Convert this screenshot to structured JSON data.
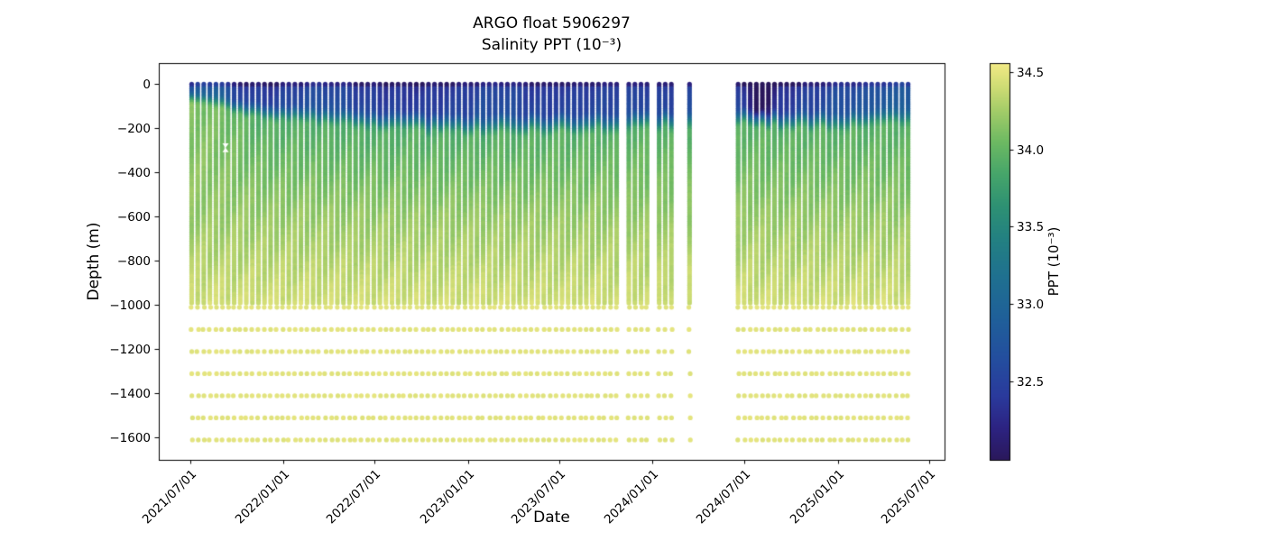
{
  "chart_data": {
    "type": "scatter",
    "title": "ARGO float 5906297",
    "subtitle": "Salinity PPT (10⁻³)",
    "xlabel": "Date",
    "ylabel": "Depth (m)",
    "x_ticks": [
      "2021/07/01",
      "2022/01/01",
      "2022/07/01",
      "2023/01/01",
      "2023/07/01",
      "2024/01/01",
      "2024/07/01",
      "2025/01/01",
      "2025/07/01"
    ],
    "x_domain": [
      "2021-04-30",
      "2025-07-31"
    ],
    "y_ticks": [
      0,
      -200,
      -400,
      -600,
      -800,
      -1000,
      -1200,
      -1400,
      -1600
    ],
    "y_domain": [
      -1700,
      95
    ],
    "grid": false,
    "legend": "none",
    "colorbar": {
      "label": "PPT (10⁻³)",
      "ticks": [
        34.5,
        34.0,
        33.5,
        33.0,
        32.5
      ],
      "vmin": 31.99,
      "vmax": 34.56,
      "colormap_stops": [
        [
          0.0,
          "#2a185c"
        ],
        [
          0.08,
          "#2c2382"
        ],
        [
          0.16,
          "#2a3a9c"
        ],
        [
          0.26,
          "#234f9e"
        ],
        [
          0.36,
          "#1f6099"
        ],
        [
          0.46,
          "#1f7090"
        ],
        [
          0.56,
          "#238181"
        ],
        [
          0.64,
          "#2e9173"
        ],
        [
          0.72,
          "#46a56a"
        ],
        [
          0.8,
          "#6cb962"
        ],
        [
          0.88,
          "#a3cc68"
        ],
        [
          0.94,
          "#cedc74"
        ],
        [
          1.0,
          "#f2e985"
        ]
      ]
    },
    "profiles": {
      "start": "2021-07-04",
      "end": "2025-05-21",
      "interval_days": 12,
      "gaps": [
        [
          "2023-11-01",
          "2023-11-13"
        ],
        [
          "2023-12-23",
          "2024-01-02"
        ],
        [
          "2024-02-19",
          "2024-03-06"
        ],
        [
          "2024-03-16",
          "2024-06-06"
        ]
      ]
    },
    "depth_sampling": {
      "dense_top": 0,
      "dense_bottom": -990,
      "dense_step": 10,
      "deep_levels": [
        -1010,
        -1110,
        -1210,
        -1310,
        -1410,
        -1510,
        -1610
      ]
    },
    "salinity_field": {
      "surface_series": [
        [
          "2021-07-04",
          32.62
        ],
        [
          "2021-08-20",
          32.85
        ],
        [
          "2021-10-01",
          32.4
        ],
        [
          "2021-12-15",
          32.32
        ],
        [
          "2022-03-01",
          32.55
        ],
        [
          "2022-06-01",
          32.42
        ],
        [
          "2022-09-01",
          32.3
        ],
        [
          "2022-12-01",
          32.36
        ],
        [
          "2023-03-01",
          32.52
        ],
        [
          "2023-06-01",
          32.36
        ],
        [
          "2023-09-01",
          32.42
        ],
        [
          "2023-12-15",
          32.46
        ],
        [
          "2024-02-01",
          32.4
        ],
        [
          "2024-06-12",
          32.55
        ],
        [
          "2024-07-28",
          31.72
        ],
        [
          "2024-08-18",
          31.9
        ],
        [
          "2024-09-12",
          32.3
        ],
        [
          "2024-12-01",
          32.48
        ],
        [
          "2025-03-01",
          32.6
        ],
        [
          "2025-05-21",
          32.78
        ]
      ],
      "mixed_layer_series": [
        [
          "2021-07-04",
          32
        ],
        [
          "2021-09-01",
          48
        ],
        [
          "2021-11-01",
          78
        ],
        [
          "2022-03-01",
          100
        ],
        [
          "2022-07-01",
          115
        ],
        [
          "2022-11-01",
          125
        ],
        [
          "2023-06-01",
          130
        ],
        [
          "2023-12-01",
          118
        ],
        [
          "2024-07-01",
          95
        ],
        [
          "2024-10-01",
          118
        ],
        [
          "2025-02-01",
          112
        ],
        [
          "2025-05-21",
          100
        ]
      ],
      "upper_mid_series": [
        [
          "2021-07-04",
          34.12
        ],
        [
          "2021-09-15",
          34.03
        ],
        [
          "2021-11-15",
          33.92
        ],
        [
          "2022-06-01",
          33.9
        ],
        [
          "2023-06-01",
          33.93
        ],
        [
          "2024-06-01",
          33.95
        ],
        [
          "2025-05-21",
          33.93
        ]
      ],
      "mid_600m_value": 34.2,
      "bottom_1000m_value": 34.42,
      "deep_dot_value": 34.49,
      "cap_offset": -0.28,
      "noise_amp": 0.05
    },
    "missing_data_marker": {
      "date": "2021-09-09",
      "depth": -288
    }
  }
}
